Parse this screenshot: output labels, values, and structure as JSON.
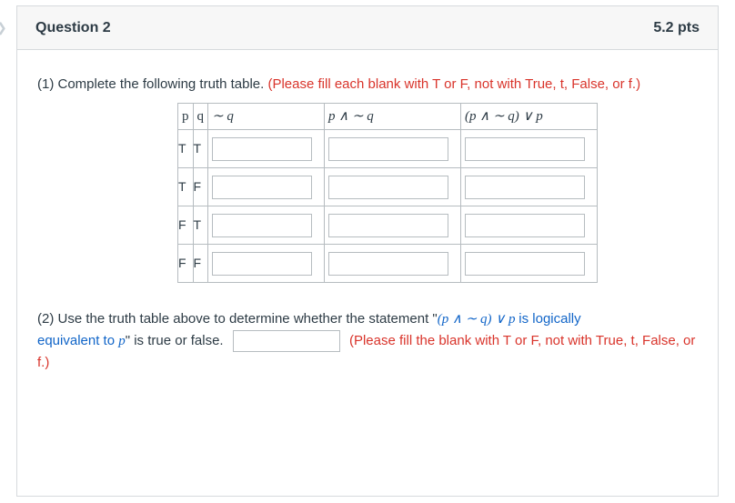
{
  "header": {
    "title": "Question 2",
    "points": "5.2 pts"
  },
  "part1": {
    "prefix": "(1) Complete the following truth table. ",
    "instruction": "(Please fill each blank with T or F, not with True, t, False, or f.)"
  },
  "table": {
    "headers": {
      "p": "p",
      "q": "q",
      "notq": "∼ q",
      "pand": "p ∧ ∼ q",
      "final": "(p ∧ ∼ q) ∨ p"
    },
    "rows": [
      {
        "p": "T",
        "q": "T"
      },
      {
        "p": "T",
        "q": "F"
      },
      {
        "p": "F",
        "q": "T"
      },
      {
        "p": "F",
        "q": "F"
      }
    ]
  },
  "part2": {
    "prefix": "(2)  Use the truth table above to determine whether the statement \"",
    "stmt": "(p ∧ ∼ q) ∨ p ",
    "mid1": "is logically",
    "line2a": "equivalent to ",
    "line2b": "p",
    "mid2": "\" is true or false.",
    "instruction": "(Please fill the blank with T or F, not with True, t, False, or f.)"
  },
  "colors": {
    "border": "#d6dadd",
    "red": "#d9342b",
    "blue": "#1165c8",
    "text": "#2d3b45"
  }
}
